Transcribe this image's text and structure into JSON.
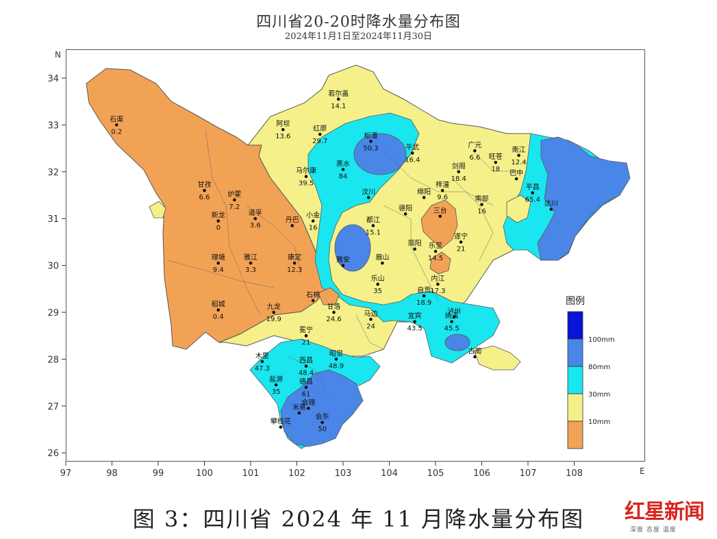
{
  "title": "四川省20-20时降水量分布图",
  "subtitle": "2024年11月1日至2024年11月30日",
  "caption": "图 3：四川省 2024 年 11 月降水量分布图",
  "brand": {
    "name": "红星新闻",
    "tagline": "深度 态度 温度"
  },
  "axes": {
    "x_unit": "E",
    "y_unit": "N",
    "x_ticks": [
      "97",
      "98",
      "99",
      "100",
      "101",
      "102",
      "103",
      "104",
      "105",
      "106",
      "107",
      "108"
    ],
    "y_ticks": [
      "34",
      "33",
      "32",
      "31",
      "30",
      "29",
      "28",
      "27",
      "26"
    ]
  },
  "legend": {
    "title": "图例",
    "levels": [
      {
        "label": "100mm",
        "color": "#0a14d6"
      },
      {
        "label": "80mm",
        "color": "#4a86e8"
      },
      {
        "label": "30mm",
        "color": "#19e6ee"
      },
      {
        "label": "10mm",
        "color": "#f5f08a"
      },
      {
        "label": "",
        "color": "#f2a255"
      }
    ]
  },
  "colors": {
    "lt10": "#f2a255",
    "10to30": "#f5f08a",
    "30to80": "#19e6ee",
    "80to100": "#4a86e8",
    "gt100": "#0a14d6"
  },
  "stations": [
    {
      "name": "石渠",
      "value": "0.2",
      "lon": 98.1,
      "lat": 33.0
    },
    {
      "name": "若尔盖",
      "value": "14.1",
      "lon": 102.9,
      "lat": 33.55
    },
    {
      "name": "阿坝",
      "value": "13.6",
      "lon": 101.7,
      "lat": 32.9
    },
    {
      "name": "红原",
      "value": "29.7",
      "lon": 102.5,
      "lat": 32.8
    },
    {
      "name": "松潘",
      "value": "50.3",
      "lon": 103.6,
      "lat": 32.65
    },
    {
      "name": "黑水",
      "value": "84",
      "lon": 103.0,
      "lat": 32.05
    },
    {
      "name": "马尔康",
      "value": "39.5",
      "lon": 102.2,
      "lat": 31.9
    },
    {
      "name": "平武",
      "value": "16.4",
      "lon": 104.5,
      "lat": 32.4
    },
    {
      "name": "广元",
      "value": "6.6",
      "lon": 105.85,
      "lat": 32.45
    },
    {
      "name": "旺苍",
      "value": "18",
      "lon": 106.3,
      "lat": 32.2
    },
    {
      "name": "剑阁",
      "value": "18.4",
      "lon": 105.5,
      "lat": 32.0
    },
    {
      "name": "南江",
      "value": "12.4",
      "lon": 106.8,
      "lat": 32.35
    },
    {
      "name": "巴中",
      "value": "",
      "lon": 106.75,
      "lat": 31.85
    },
    {
      "name": "平昌",
      "value": "65.4",
      "lon": 107.1,
      "lat": 31.55
    },
    {
      "name": "达川",
      "value": "",
      "lon": 107.5,
      "lat": 31.2
    },
    {
      "name": "南部",
      "value": "16",
      "lon": 106.0,
      "lat": 31.3
    },
    {
      "name": "梓潼",
      "value": "9.6",
      "lon": 105.15,
      "lat": 31.6
    },
    {
      "name": "绵阳",
      "value": "",
      "lon": 104.75,
      "lat": 31.45
    },
    {
      "name": "汶川",
      "value": "",
      "lon": 103.55,
      "lat": 31.45
    },
    {
      "name": "德阳",
      "value": "",
      "lon": 104.35,
      "lat": 31.1
    },
    {
      "name": "三台",
      "value": "",
      "lon": 105.1,
      "lat": 31.05
    },
    {
      "name": "甘孜",
      "value": "6.6",
      "lon": 100.0,
      "lat": 31.6
    },
    {
      "name": "炉霍",
      "value": "7.2",
      "lon": 100.65,
      "lat": 31.4
    },
    {
      "name": "新龙",
      "value": "0",
      "lon": 100.3,
      "lat": 30.95
    },
    {
      "name": "道孚",
      "value": "3.6",
      "lon": 101.1,
      "lat": 31.0
    },
    {
      "name": "丹巴",
      "value": "",
      "lon": 101.9,
      "lat": 30.85
    },
    {
      "name": "小金",
      "value": "16",
      "lon": 102.35,
      "lat": 30.95
    },
    {
      "name": "都江",
      "value": "15.1",
      "lon": 103.65,
      "lat": 30.85
    },
    {
      "name": "遂宁",
      "value": "21",
      "lon": 105.55,
      "lat": 30.5
    },
    {
      "name": "乐至",
      "value": "14.5",
      "lon": 105.0,
      "lat": 30.3
    },
    {
      "name": "简阳",
      "value": "",
      "lon": 104.55,
      "lat": 30.35
    },
    {
      "name": "理塘",
      "value": "9.4",
      "lon": 100.3,
      "lat": 30.05
    },
    {
      "name": "雅江",
      "value": "3.3",
      "lon": 101.0,
      "lat": 30.05
    },
    {
      "name": "康定",
      "value": "12.3",
      "lon": 101.95,
      "lat": 30.05
    },
    {
      "name": "雅安",
      "value": "",
      "lon": 103.0,
      "lat": 30.0
    },
    {
      "name": "眉山",
      "value": "",
      "lon": 103.85,
      "lat": 30.05
    },
    {
      "name": "内江",
      "value": "17.3",
      "lon": 105.05,
      "lat": 29.6
    },
    {
      "name": "乐山",
      "value": "35",
      "lon": 103.75,
      "lat": 29.6
    },
    {
      "name": "自贡",
      "value": "18.9",
      "lon": 104.75,
      "lat": 29.35
    },
    {
      "name": "石棉",
      "value": "",
      "lon": 102.35,
      "lat": 29.25
    },
    {
      "name": "稻城",
      "value": "0.4",
      "lon": 100.3,
      "lat": 29.05
    },
    {
      "name": "九龙",
      "value": "19.9",
      "lon": 101.5,
      "lat": 29.0
    },
    {
      "name": "甘洛",
      "value": "24.6",
      "lon": 102.8,
      "lat": 29.0
    },
    {
      "name": "马边",
      "value": "24",
      "lon": 103.6,
      "lat": 28.85
    },
    {
      "name": "宜宾",
      "value": "43.5",
      "lon": 104.55,
      "lat": 28.8
    },
    {
      "name": "泸州",
      "value": "",
      "lon": 105.4,
      "lat": 28.9
    },
    {
      "name": "纳溪",
      "value": "45.5",
      "lon": 105.35,
      "lat": 28.8
    },
    {
      "name": "古蔺",
      "value": "",
      "lon": 105.85,
      "lat": 28.05
    },
    {
      "name": "冕宁",
      "value": "21",
      "lon": 102.2,
      "lat": 28.5
    },
    {
      "name": "木里",
      "value": "47.3",
      "lon": 101.25,
      "lat": 27.95
    },
    {
      "name": "西昌",
      "value": "48.4",
      "lon": 102.2,
      "lat": 27.85
    },
    {
      "name": "昭觉",
      "value": "48.9",
      "lon": 102.85,
      "lat": 28.0
    },
    {
      "name": "盐源",
      "value": "35",
      "lon": 101.55,
      "lat": 27.45
    },
    {
      "name": "德昌",
      "value": "61",
      "lon": 102.2,
      "lat": 27.4
    },
    {
      "name": "会理",
      "value": "",
      "lon": 102.25,
      "lat": 26.95
    },
    {
      "name": "米易",
      "value": "",
      "lon": 102.05,
      "lat": 26.85
    },
    {
      "name": "攀枝花",
      "value": "",
      "lon": 101.65,
      "lat": 26.55
    },
    {
      "name": "会东",
      "value": "50",
      "lon": 102.55,
      "lat": 26.65
    }
  ]
}
